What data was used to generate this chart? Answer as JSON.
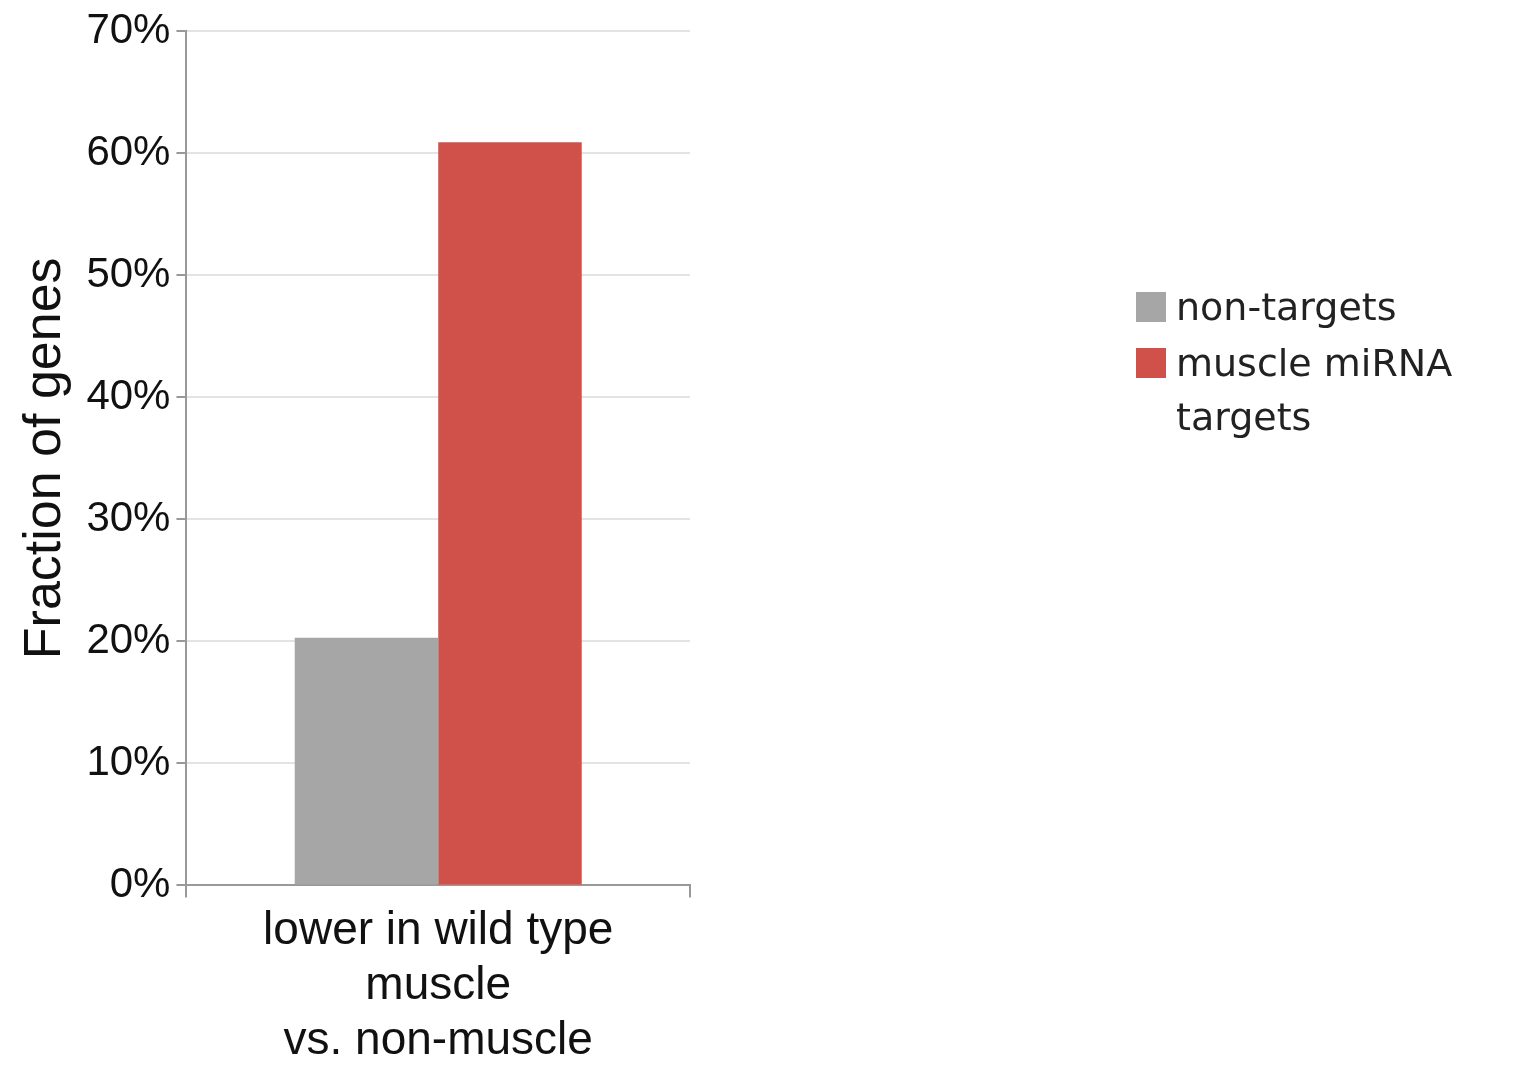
{
  "chart_data": {
    "type": "bar",
    "ylabel": "Fraction of genes",
    "categories": [
      "lower in wild type\nmuscle\nvs. non-muscle"
    ],
    "series": [
      {
        "name": "non-targets",
        "color": "#a6a6a6",
        "values": [
          20.3
        ]
      },
      {
        "name": "muscle miRNA targets",
        "color": "#d0504a",
        "values": [
          60.9
        ]
      }
    ],
    "ylim": [
      0,
      70
    ],
    "yticks": [
      {
        "value": 0,
        "label": "0%"
      },
      {
        "value": 10,
        "label": "10%"
      },
      {
        "value": 20,
        "label": "20%"
      },
      {
        "value": 30,
        "label": "30%"
      },
      {
        "value": 40,
        "label": "40%"
      },
      {
        "value": 50,
        "label": "50%"
      },
      {
        "value": 60,
        "label": "60%"
      },
      {
        "value": 70,
        "label": "70%"
      }
    ],
    "grid": "y",
    "legend": "right"
  }
}
